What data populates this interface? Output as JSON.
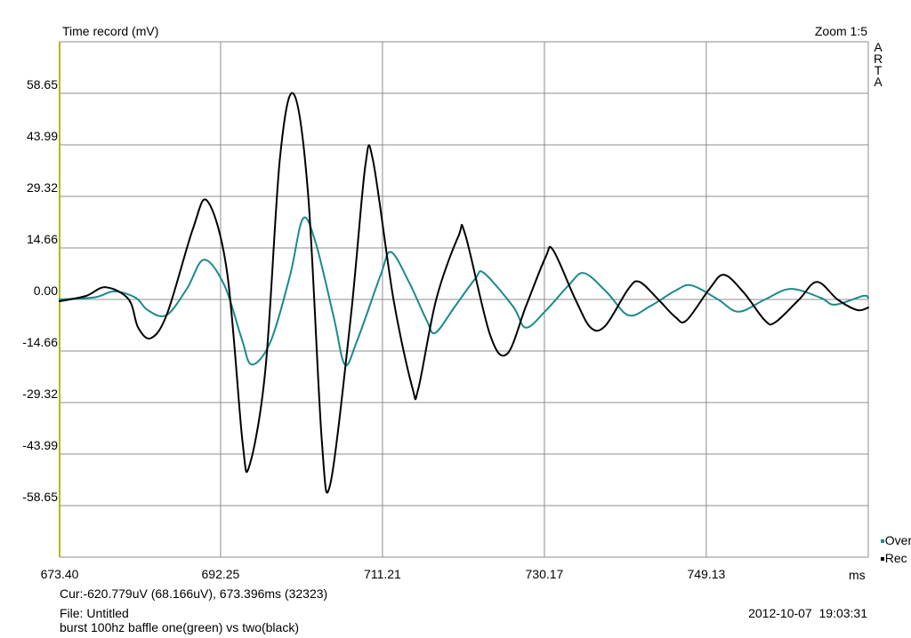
{
  "header": {
    "title": "Time record (mV)",
    "zoom": "Zoom 1:5",
    "brand_letters": [
      "A",
      "R",
      "T",
      "A"
    ]
  },
  "footer": {
    "cursor": "Cur:-620.779uV (68.166uV), 673.396ms (32323)",
    "file": "File: Untitled",
    "description": "burst 100hz baffle one(green) vs two(black)",
    "timestamp": "2012-10-07  19:03:31"
  },
  "colors": {
    "green_series": "#1a8a8a",
    "black_series": "#000000",
    "grid": "#8c8c8c",
    "left_axis": "#b8b800"
  },
  "chart_data": {
    "type": "line",
    "title": "Time record (mV)",
    "xlabel": "ms",
    "ylabel": "",
    "xlim": [
      673.4,
      768.1
    ],
    "ylim": [
      -73.3,
      73.3
    ],
    "grid": true,
    "legend_position": "bottom-right",
    "x_ticks": [
      "673.40",
      "692.25",
      "711.21",
      "730.17",
      "749.13"
    ],
    "x_tick_values": [
      673.4,
      692.25,
      711.21,
      730.17,
      749.13
    ],
    "y_ticks": [
      "58.65",
      "43.99",
      "29.32",
      "14.66",
      "0.00",
      "-14.66",
      "-29.32",
      "-43.99",
      "-58.65"
    ],
    "y_tick_values": [
      58.65,
      43.99,
      29.32,
      14.66,
      0.0,
      -14.66,
      -29.32,
      -43.99,
      -58.65
    ],
    "series": [
      {
        "name": "Over",
        "color": "#1a8a8a",
        "points": [
          [
            673.4,
            0
          ],
          [
            677.5,
            0.6
          ],
          [
            679.8,
            2.3
          ],
          [
            682.3,
            0.5
          ],
          [
            683.7,
            -3.0
          ],
          [
            685.9,
            -4.5
          ],
          [
            688.3,
            3.0
          ],
          [
            690.3,
            11.3
          ],
          [
            692.7,
            4.0
          ],
          [
            694.7,
            -11.0
          ],
          [
            695.9,
            -18.5
          ],
          [
            698.1,
            -12.0
          ],
          [
            700.4,
            7.0
          ],
          [
            701.9,
            23.0
          ],
          [
            703.4,
            16.0
          ],
          [
            705.5,
            -5.0
          ],
          [
            706.8,
            -18.5
          ],
          [
            708.2,
            -12.0
          ],
          [
            711.0,
            7.0
          ],
          [
            712.2,
            13.5
          ],
          [
            714.3,
            5.0
          ],
          [
            716.4,
            -6.0
          ],
          [
            717.4,
            -9.5
          ],
          [
            719.7,
            -2.0
          ],
          [
            722.1,
            6.0
          ],
          [
            723.1,
            7.5
          ],
          [
            726.5,
            -2.0
          ],
          [
            728.0,
            -8.0
          ],
          [
            730.4,
            -3.0
          ],
          [
            733.0,
            4.0
          ],
          [
            734.8,
            7.5
          ],
          [
            737.5,
            2.0
          ],
          [
            740.0,
            -4.5
          ],
          [
            742.5,
            -2.0
          ],
          [
            745.5,
            2.5
          ],
          [
            747.4,
            4.0
          ],
          [
            750.5,
            0.0
          ],
          [
            752.9,
            -3.5
          ],
          [
            756.0,
            0.0
          ],
          [
            759.0,
            3.0
          ],
          [
            762.5,
            0.5
          ],
          [
            764.2,
            -1.5
          ],
          [
            767.5,
            1.0
          ],
          [
            768.1,
            0.4
          ]
        ]
      },
      {
        "name": "Rec",
        "color": "#000000",
        "points": [
          [
            673.4,
            -0.5
          ],
          [
            676.5,
            1.0
          ],
          [
            678.8,
            3.5
          ],
          [
            681.5,
            0.0
          ],
          [
            682.6,
            -8.0
          ],
          [
            684.1,
            -11.0
          ],
          [
            686.0,
            -4.0
          ],
          [
            689.0,
            20.0
          ],
          [
            690.7,
            28.0
          ],
          [
            693.0,
            8.0
          ],
          [
            694.8,
            -40.0
          ],
          [
            695.6,
            -47.5
          ],
          [
            697.5,
            -20.0
          ],
          [
            699.2,
            40.0
          ],
          [
            700.8,
            58.5
          ],
          [
            702.5,
            30.0
          ],
          [
            704.1,
            -40.0
          ],
          [
            705.1,
            -52.5
          ],
          [
            707.5,
            -5.0
          ],
          [
            709.2,
            38.0
          ],
          [
            710.1,
            39.5
          ],
          [
            712.5,
            0.0
          ],
          [
            714.7,
            -25.0
          ],
          [
            715.4,
            -25.5
          ],
          [
            717.5,
            0.0
          ],
          [
            720.1,
            18.0
          ],
          [
            720.9,
            18.5
          ],
          [
            723.8,
            -10.0
          ],
          [
            725.8,
            -15.5
          ],
          [
            728.0,
            -2.0
          ],
          [
            730.3,
            12.0
          ],
          [
            731.2,
            14.0
          ],
          [
            733.8,
            0.0
          ],
          [
            735.6,
            -8.0
          ],
          [
            737.3,
            -7.5
          ],
          [
            740.0,
            3.0
          ],
          [
            741.3,
            5.0
          ],
          [
            743.5,
            0.0
          ],
          [
            745.5,
            -5.0
          ],
          [
            746.8,
            -6.0
          ],
          [
            749.5,
            3.0
          ],
          [
            751.2,
            7.0
          ],
          [
            753.5,
            2.0
          ],
          [
            756.0,
            -6.0
          ],
          [
            757.2,
            -6.5
          ],
          [
            760.0,
            0.0
          ],
          [
            762.1,
            5.0
          ],
          [
            764.5,
            0.0
          ],
          [
            766.8,
            -3.0
          ],
          [
            768.1,
            -2.3
          ]
        ]
      }
    ]
  }
}
